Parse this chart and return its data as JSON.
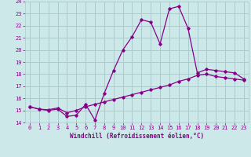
{
  "xlabel": "Windchill (Refroidissement éolien,°C)",
  "bg_color": "#cce8e8",
  "line_color": "#880088",
  "grid_color": "#aacccc",
  "x_ticks": [
    0,
    1,
    2,
    3,
    4,
    5,
    6,
    7,
    8,
    9,
    10,
    11,
    12,
    13,
    14,
    15,
    16,
    17,
    18,
    19,
    20,
    21,
    22,
    23
  ],
  "y_ticks": [
    14,
    15,
    16,
    17,
    18,
    19,
    20,
    21,
    22,
    23,
    24
  ],
  "ylim": [
    14,
    24
  ],
  "xlim": [
    -0.5,
    23.5
  ],
  "upper_x": [
    0,
    1,
    2,
    3,
    4,
    5,
    6,
    7,
    8,
    9,
    10,
    11,
    12,
    13,
    14,
    15,
    16,
    17,
    18,
    19,
    20,
    21,
    22,
    23
  ],
  "upper_y": [
    15.3,
    15.1,
    15.0,
    15.1,
    14.5,
    14.6,
    15.5,
    14.2,
    16.4,
    18.3,
    20.0,
    21.1,
    22.5,
    22.3,
    20.5,
    23.4,
    23.6,
    21.8,
    18.1,
    18.4,
    18.3,
    18.2,
    18.1,
    17.6
  ],
  "lower_x": [
    0,
    1,
    2,
    3,
    4,
    5,
    6,
    7,
    8,
    9,
    10,
    11,
    12,
    13,
    14,
    15,
    16,
    17,
    18,
    19,
    20,
    21,
    22,
    23
  ],
  "lower_y": [
    15.3,
    15.1,
    15.05,
    15.2,
    14.8,
    15.0,
    15.3,
    15.5,
    15.7,
    15.9,
    16.1,
    16.3,
    16.5,
    16.7,
    16.9,
    17.1,
    17.4,
    17.6,
    17.9,
    18.0,
    17.8,
    17.7,
    17.6,
    17.5
  ],
  "tick_fontsize": 5.0,
  "xlabel_fontsize": 5.5
}
